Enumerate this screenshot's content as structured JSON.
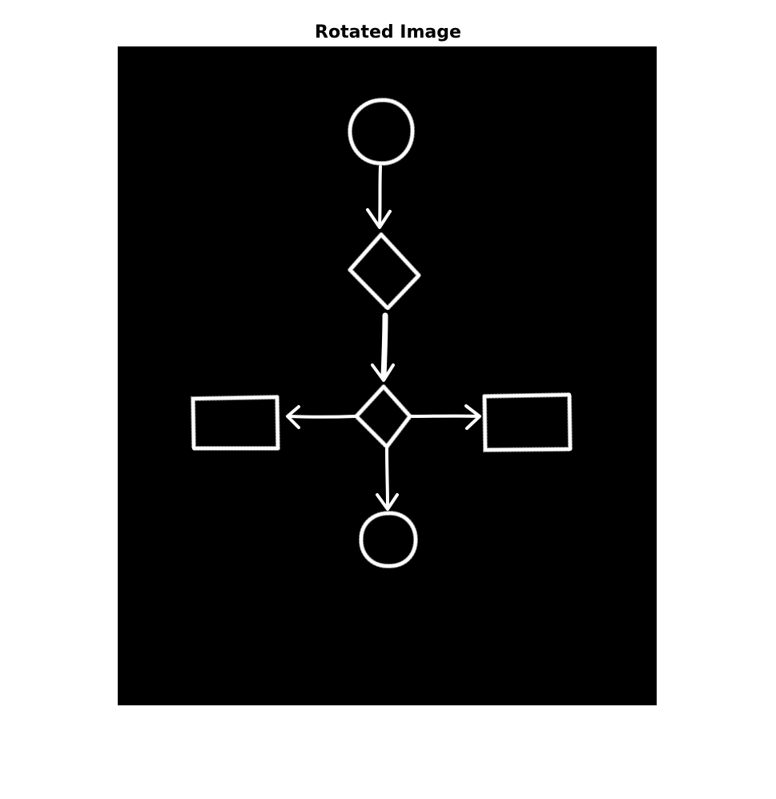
{
  "figure": {
    "title": "Rotated Image",
    "background_color": "#ffffff",
    "image_background_color": "#000000",
    "stroke_color": "#ffffff"
  },
  "diagram": {
    "type": "flowchart",
    "style": "hand-drawn binary image",
    "nodes": [
      {
        "id": "start",
        "shape": "circle"
      },
      {
        "id": "decision-1",
        "shape": "diamond"
      },
      {
        "id": "decision-2",
        "shape": "diamond"
      },
      {
        "id": "process-left",
        "shape": "rectangle"
      },
      {
        "id": "process-right",
        "shape": "rectangle"
      },
      {
        "id": "end",
        "shape": "circle"
      }
    ],
    "edges": [
      {
        "from": "start",
        "to": "decision-1"
      },
      {
        "from": "decision-1",
        "to": "decision-2"
      },
      {
        "from": "decision-2",
        "to": "process-left"
      },
      {
        "from": "decision-2",
        "to": "process-right"
      },
      {
        "from": "decision-2",
        "to": "end"
      }
    ]
  }
}
